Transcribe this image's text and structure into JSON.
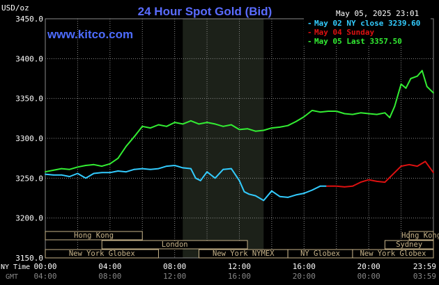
{
  "chart_data": {
    "type": "line",
    "title": "24 Hour Spot Gold (Bid)",
    "watermark": "www.kitco.com",
    "unit_label": "USD/oz",
    "timestamp": "May 05, 2025 23:01",
    "ylim": [
      3150,
      3450
    ],
    "y_ticks": [
      "3450.0",
      "3400.0",
      "3350.0",
      "3300.0",
      "3250.0",
      "3200.0",
      "3150.0"
    ],
    "x_ticks": {
      "row1_label": "NY Time",
      "row2_label": "GMT",
      "ny_time": [
        "00:00",
        "04:00",
        "08:00",
        "12:00",
        "16:00",
        "20:00",
        "23:59"
      ],
      "gmt": [
        "04:00",
        "08:00",
        "12:00",
        "16:00",
        "20:00",
        "00:00",
        "03:59"
      ]
    },
    "legend": {
      "placement": "top-right",
      "entries": [
        {
          "label": "May 02 NY close 3239.60",
          "color": "#33ccff"
        },
        {
          "label": "May 04 Sunday",
          "color": "#dd1111"
        },
        {
          "label": "May 05 Last 3357.50",
          "color": "#33ee33"
        }
      ]
    },
    "sessions_top": [
      {
        "name": "Hong Kong",
        "start": 0,
        "end": 6
      },
      {
        "name": "Hong Kong",
        "start": 22.5,
        "end": 24
      }
    ],
    "sessions_mid": [
      {
        "name": "London",
        "start": 3.5,
        "end": 12.5
      },
      {
        "name": "Sydney",
        "start": 21,
        "end": 24
      }
    ],
    "sessions_bottom": [
      {
        "name": "New York Globex",
        "start": 0,
        "end": 7
      },
      {
        "name": "New York NYMEX",
        "start": 9.5,
        "end": 15
      },
      {
        "name": "NY Globex",
        "start": 15,
        "end": 19
      },
      {
        "name": "New York Globex",
        "start": 19,
        "end": 24
      }
    ],
    "highlight_range": [
      8.5,
      13.5
    ],
    "series": [
      {
        "name": "May 02 NY close 3239.60",
        "color": "#33ccff",
        "x": [
          0,
          0.5,
          1,
          1.5,
          2,
          2.5,
          3,
          3.5,
          4,
          4.5,
          5,
          5.5,
          6,
          6.5,
          7,
          7.5,
          8,
          8.5,
          9,
          9.3,
          9.6,
          10,
          10.5,
          11,
          11.5,
          12,
          12.3,
          12.6,
          13,
          13.5,
          14,
          14.5,
          15,
          15.5,
          16,
          16.5,
          17,
          17.4
        ],
        "values": [
          3255,
          3254,
          3254,
          3252,
          3256,
          3250,
          3256,
          3257,
          3257,
          3259,
          3258,
          3261,
          3262,
          3261,
          3262,
          3265,
          3266,
          3263,
          3262,
          3250,
          3247,
          3258,
          3250,
          3261,
          3262,
          3247,
          3233,
          3230,
          3228,
          3222,
          3234,
          3227,
          3226,
          3229,
          3231,
          3235,
          3240,
          3240
        ]
      },
      {
        "name": "May 04 Sunday",
        "color": "#dd1111",
        "x": [
          17.4,
          18,
          18.5,
          19,
          19.5,
          20,
          20.5,
          21,
          21.5,
          22,
          22.5,
          23,
          23.5,
          24
        ],
        "values": [
          3240,
          3240,
          3239,
          3240,
          3245,
          3248,
          3246,
          3245,
          3255,
          3265,
          3267,
          3265,
          3271,
          3257
        ]
      },
      {
        "name": "May 05 Last 3357.50",
        "color": "#33ee33",
        "x": [
          0,
          0.5,
          1,
          1.5,
          2,
          2.5,
          3,
          3.5,
          4,
          4.5,
          5,
          5.5,
          6,
          6.5,
          7,
          7.5,
          8,
          8.5,
          9,
          9.5,
          10,
          10.5,
          11,
          11.5,
          12,
          12.5,
          13,
          13.5,
          14,
          14.5,
          15,
          15.5,
          16,
          16.5,
          17,
          17.5,
          18,
          18.5,
          19,
          19.5,
          20,
          20.5,
          21,
          21.3,
          21.6,
          22,
          22.3,
          22.6,
          23,
          23.3,
          23.6,
          24
        ],
        "values": [
          3258,
          3260,
          3262,
          3261,
          3264,
          3266,
          3267,
          3265,
          3268,
          3275,
          3290,
          3302,
          3315,
          3313,
          3317,
          3315,
          3320,
          3318,
          3322,
          3318,
          3320,
          3318,
          3315,
          3317,
          3311,
          3312,
          3309,
          3310,
          3313,
          3314,
          3316,
          3321,
          3327,
          3335,
          3333,
          3334,
          3334,
          3331,
          3330,
          3332,
          3331,
          3330,
          3332,
          3326,
          3340,
          3368,
          3363,
          3375,
          3378,
          3385,
          3365,
          3357
        ]
      }
    ]
  }
}
